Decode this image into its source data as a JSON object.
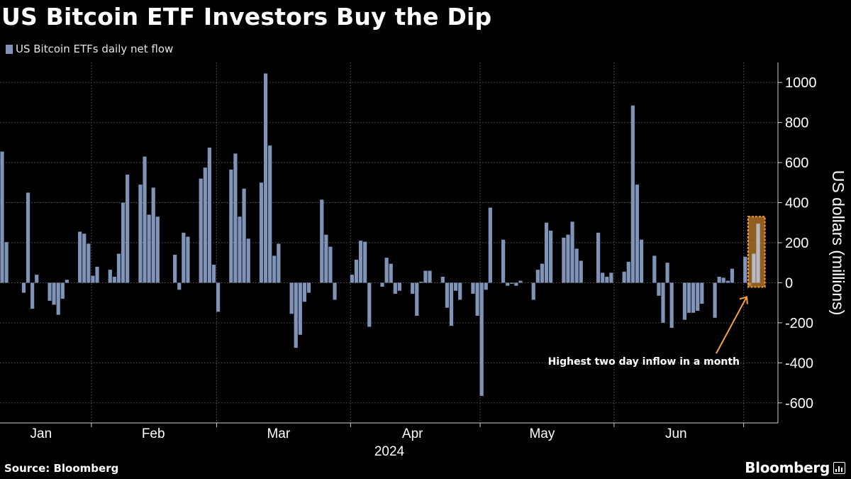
{
  "title": "US Bitcoin ETF Investors Buy the Dip",
  "source": "Source: Bloomberg",
  "brand": "Bloomberg",
  "brand_icon": "bloomberg-chart-icon",
  "colors": {
    "background": "#000000",
    "bar": "#8093b8",
    "highlight_fill": "#c8822b",
    "highlight_border": "#f0a030",
    "annotation_arrow": "#f5a33a",
    "grid": "#5a5a5a",
    "text": "#ffffff"
  },
  "chart_data": {
    "type": "bar",
    "legend": [
      "US Bitcoin ETFs daily net flow"
    ],
    "ylabel": "US dollars (millions)",
    "ylim": [
      -700,
      1100
    ],
    "yticks": [
      -600,
      -400,
      -200,
      0,
      200,
      400,
      600,
      800,
      1000
    ],
    "ytick_labels": [
      "-600",
      "-400",
      "-200",
      "0",
      "200",
      "400",
      "600",
      "800",
      "1000"
    ],
    "xlabel": "2024",
    "x_range": [
      "2024-01-11",
      "2024-07-04"
    ],
    "month_labels": [
      {
        "label": "Jan",
        "date": "2024-01-20"
      },
      {
        "label": "Feb",
        "date": "2024-02-15"
      },
      {
        "label": "Mar",
        "date": "2024-03-15"
      },
      {
        "label": "Apr",
        "date": "2024-04-15"
      },
      {
        "label": "May",
        "date": "2024-05-15"
      },
      {
        "label": "Jun",
        "date": "2024-06-15"
      }
    ],
    "gridlines_x": [
      "2024-01-31",
      "2024-02-29",
      "2024-03-31",
      "2024-04-30",
      "2024-05-31",
      "2024-06-30"
    ],
    "grid": true,
    "series": [
      {
        "name": "US Bitcoin ETFs daily net flow",
        "data": [
          [
            "2024-01-11",
            655
          ],
          [
            "2024-01-12",
            203
          ],
          [
            "2024-01-16",
            -50
          ],
          [
            "2024-01-17",
            450
          ],
          [
            "2024-01-18",
            -130
          ],
          [
            "2024-01-19",
            40
          ],
          [
            "2024-01-22",
            -90
          ],
          [
            "2024-01-23",
            -110
          ],
          [
            "2024-01-24",
            -160
          ],
          [
            "2024-01-25",
            -80
          ],
          [
            "2024-01-26",
            15
          ],
          [
            "2024-01-29",
            255
          ],
          [
            "2024-01-30",
            245
          ],
          [
            "2024-01-31",
            195
          ],
          [
            "2024-02-01",
            35
          ],
          [
            "2024-02-02",
            80
          ],
          [
            "2024-02-05",
            65
          ],
          [
            "2024-02-06",
            30
          ],
          [
            "2024-02-07",
            145
          ],
          [
            "2024-02-08",
            400
          ],
          [
            "2024-02-09",
            540
          ],
          [
            "2024-02-12",
            490
          ],
          [
            "2024-02-13",
            630
          ],
          [
            "2024-02-14",
            340
          ],
          [
            "2024-02-15",
            475
          ],
          [
            "2024-02-16",
            330
          ],
          [
            "2024-02-20",
            140
          ],
          [
            "2024-02-21",
            -35
          ],
          [
            "2024-02-22",
            250
          ],
          [
            "2024-02-23",
            230
          ],
          [
            "2024-02-26",
            520
          ],
          [
            "2024-02-27",
            575
          ],
          [
            "2024-02-28",
            675
          ],
          [
            "2024-02-29",
            90
          ],
          [
            "2024-03-01",
            -145
          ],
          [
            "2024-03-04",
            565
          ],
          [
            "2024-03-05",
            645
          ],
          [
            "2024-03-06",
            330
          ],
          [
            "2024-03-07",
            470
          ],
          [
            "2024-03-08",
            220
          ],
          [
            "2024-03-11",
            500
          ],
          [
            "2024-03-12",
            1045
          ],
          [
            "2024-03-13",
            685
          ],
          [
            "2024-03-14",
            135
          ],
          [
            "2024-03-15",
            195
          ],
          [
            "2024-03-18",
            -155
          ],
          [
            "2024-03-19",
            -325
          ],
          [
            "2024-03-20",
            -260
          ],
          [
            "2024-03-21",
            -95
          ],
          [
            "2024-03-22",
            -50
          ],
          [
            "2024-03-25",
            415
          ],
          [
            "2024-03-26",
            240
          ],
          [
            "2024-03-27",
            180
          ],
          [
            "2024-03-28",
            -85
          ],
          [
            "2024-04-01",
            40
          ],
          [
            "2024-04-02",
            115
          ],
          [
            "2024-04-03",
            210
          ],
          [
            "2024-04-04",
            205
          ],
          [
            "2024-04-05",
            -220
          ],
          [
            "2024-04-08",
            -20
          ],
          [
            "2024-04-09",
            125
          ],
          [
            "2024-04-10",
            95
          ],
          [
            "2024-04-11",
            -55
          ],
          [
            "2024-04-12",
            -40
          ],
          [
            "2024-04-15",
            -55
          ],
          [
            "2024-04-16",
            -165
          ],
          [
            "2024-04-17",
            5
          ],
          [
            "2024-04-18",
            60
          ],
          [
            "2024-04-19",
            60
          ],
          [
            "2024-04-22",
            30
          ],
          [
            "2024-04-23",
            -125
          ],
          [
            "2024-04-24",
            -215
          ],
          [
            "2024-04-25",
            -40
          ],
          [
            "2024-04-26",
            -85
          ],
          [
            "2024-04-29",
            -55
          ],
          [
            "2024-04-30",
            -165
          ],
          [
            "2024-05-01",
            -565
          ],
          [
            "2024-05-02",
            -35
          ],
          [
            "2024-05-03",
            375
          ],
          [
            "2024-05-06",
            215
          ],
          [
            "2024-05-07",
            -15
          ],
          [
            "2024-05-08",
            -5
          ],
          [
            "2024-05-09",
            -15
          ],
          [
            "2024-05-10",
            10
          ],
          [
            "2024-05-13",
            -85
          ],
          [
            "2024-05-14",
            65
          ],
          [
            "2024-05-15",
            95
          ],
          [
            "2024-05-16",
            300
          ],
          [
            "2024-05-17",
            260
          ],
          [
            "2024-05-20",
            225
          ],
          [
            "2024-05-21",
            240
          ],
          [
            "2024-05-22",
            305
          ],
          [
            "2024-05-23",
            170
          ],
          [
            "2024-05-24",
            110
          ],
          [
            "2024-05-28",
            250
          ],
          [
            "2024-05-29",
            50
          ],
          [
            "2024-05-30",
            30
          ],
          [
            "2024-05-31",
            50
          ],
          [
            "2024-06-03",
            55
          ],
          [
            "2024-06-04",
            105
          ],
          [
            "2024-06-05",
            885
          ],
          [
            "2024-06-06",
            490
          ],
          [
            "2024-06-07",
            215
          ],
          [
            "2024-06-10",
            135
          ],
          [
            "2024-06-11",
            -65
          ],
          [
            "2024-06-12",
            -200
          ],
          [
            "2024-06-13",
            100
          ],
          [
            "2024-06-14",
            -225
          ],
          [
            "2024-06-17",
            -185
          ],
          [
            "2024-06-18",
            -150
          ],
          [
            "2024-06-19",
            -150
          ],
          [
            "2024-06-20",
            -140
          ],
          [
            "2024-06-21",
            -105
          ],
          [
            "2024-06-24",
            -175
          ],
          [
            "2024-06-25",
            30
          ],
          [
            "2024-06-26",
            25
          ],
          [
            "2024-06-27",
            10
          ],
          [
            "2024-06-28",
            70
          ],
          [
            "2024-07-01",
            130
          ],
          [
            "2024-07-02",
            -15
          ],
          [
            "2024-07-03",
            145
          ],
          [
            "2024-07-04",
            295
          ]
        ]
      }
    ],
    "highlight": {
      "start": "2024-07-03",
      "end": "2024-07-04"
    },
    "annotation": {
      "text": "Highest two day inflow in a month",
      "points_to": "2024-07-03"
    }
  }
}
